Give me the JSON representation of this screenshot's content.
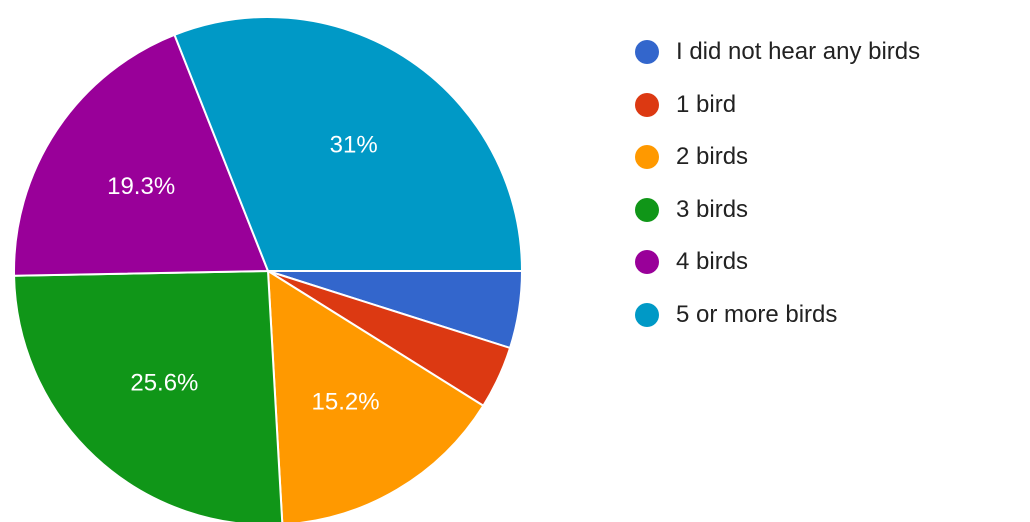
{
  "chart_data": {
    "type": "pie",
    "title": "",
    "legend_position": "right",
    "start_angle_deg": 0,
    "direction": "clockwise",
    "slices": [
      {
        "label": "I did not hear any birds",
        "value": 4.9,
        "display": "",
        "color": "#3366cc"
      },
      {
        "label": "1 bird",
        "value": 4.0,
        "display": "",
        "color": "#dc3912"
      },
      {
        "label": "2 birds",
        "value": 15.2,
        "display": "15.2%",
        "color": "#ff9900"
      },
      {
        "label": "3 birds",
        "value": 25.6,
        "display": "25.6%",
        "color": "#109618"
      },
      {
        "label": "4 birds",
        "value": 19.3,
        "display": "19.3%",
        "color": "#990099"
      },
      {
        "label": "5 or more birds",
        "value": 31.0,
        "display": "31%",
        "color": "#0099c6"
      }
    ]
  }
}
